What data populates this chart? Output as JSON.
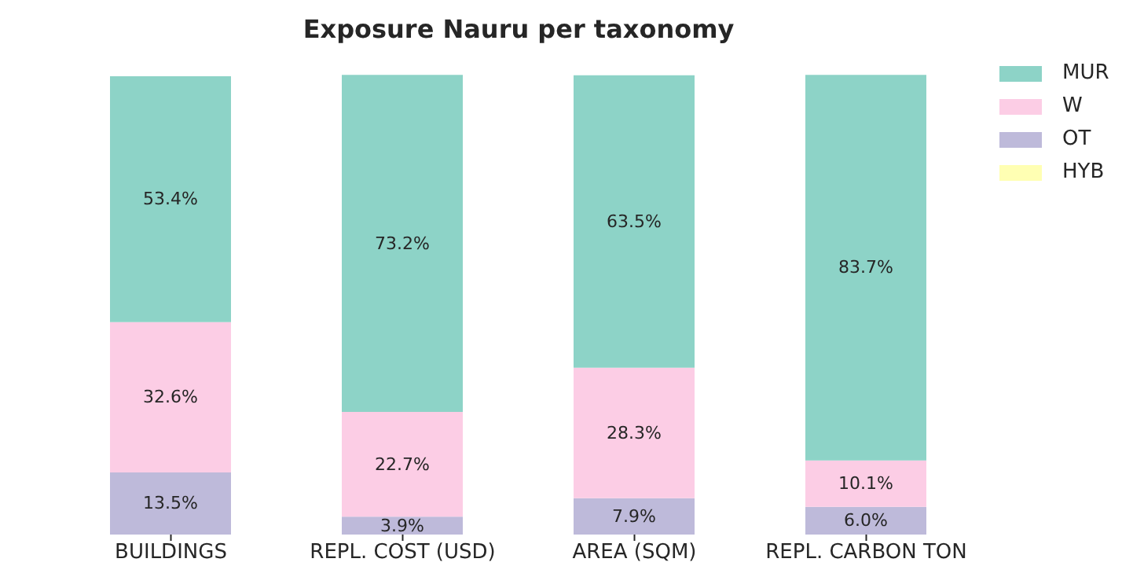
{
  "chart_data": {
    "type": "bar",
    "title": "Exposure Nauru per taxonomy",
    "categories": [
      "BUILDINGS",
      "REPL. COST (USD)",
      "AREA (SQM)",
      "REPL. CARBON TON"
    ],
    "stacked": true,
    "ylim": [
      0,
      100
    ],
    "tick_labels": "x",
    "legend": "top right",
    "grid": false,
    "series": [
      {
        "name": "HYB",
        "color": "#ffffb3",
        "values": [
          null,
          null,
          null,
          null
        ],
        "value_labels": [
          null,
          null,
          null,
          null
        ]
      },
      {
        "name": "OT",
        "color": "#bebada",
        "values": [
          13.5,
          3.9,
          7.9,
          6.0
        ],
        "value_labels": [
          "13.5%",
          "3.9%",
          "7.9%",
          "6.0%"
        ]
      },
      {
        "name": "W",
        "color": "#fccde5",
        "values": [
          32.6,
          22.7,
          28.3,
          10.1
        ],
        "value_labels": [
          "32.6%",
          "22.7%",
          "28.3%",
          "10.1%"
        ]
      },
      {
        "name": "MUR",
        "color": "#8dd3c7",
        "values": [
          53.4,
          73.2,
          63.5,
          83.7
        ],
        "value_labels": [
          "53.4%",
          "73.2%",
          "63.5%",
          "83.7%"
        ]
      }
    ]
  }
}
